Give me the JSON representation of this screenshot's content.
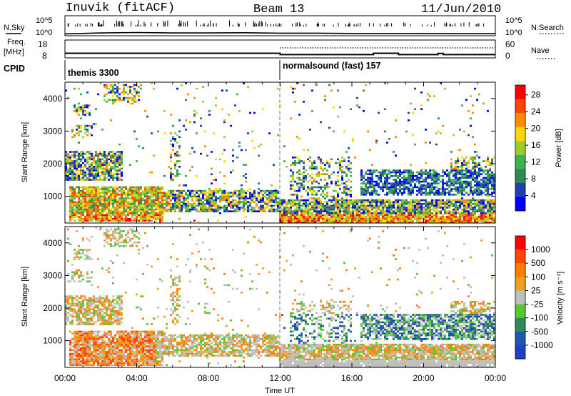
{
  "header": {
    "station": "Inuvik (fitACF)",
    "beam": "Beam 13",
    "date": "11/Jun/2010"
  },
  "top_panels": {
    "nsky_label": "N.Sky",
    "nsky_ticks": [
      "10^5",
      "10^0"
    ],
    "nsearch_label": "N.Search",
    "freq_label_1": "Freq.",
    "freq_label_2": "[MHz]",
    "freq_ticks": [
      "18",
      "8"
    ],
    "nave_ticks": [
      "60",
      "0"
    ],
    "nave_label": "Nave",
    "cpid_label": "CPID",
    "cpid_1": "themis 3300",
    "cpid_2": "normalsound (fast) 157"
  },
  "colors": {
    "power_scale": [
      "#0000ff",
      "#2040b0",
      "#2e8b57",
      "#3cb44b",
      "#9acd32",
      "#ffd700",
      "#ff8c00",
      "#ff4500",
      "#ff0000"
    ],
    "velocity_scale": [
      "#2040c0",
      "#1e5aa8",
      "#2e8b57",
      "#55c832",
      "#bebebe",
      "#f0a020",
      "#ff7f00",
      "#ff4500",
      "#ff0000"
    ]
  },
  "chart_data": [
    {
      "type": "line",
      "panel": "nsky",
      "ylabel": "N.Sky",
      "yticks": [
        "10^5",
        "10^0"
      ],
      "x": [
        0,
        2,
        4,
        6,
        8,
        10,
        12,
        14,
        16,
        18,
        20,
        22,
        24
      ],
      "y_log10": [
        0.5,
        0.9,
        1.1,
        0.9,
        0.9,
        1.0,
        0.8,
        0.8,
        0.7,
        0.7,
        0.7,
        0.6,
        0.6
      ]
    },
    {
      "type": "line",
      "panel": "frequency",
      "ylabel": "Freq. [MHz]",
      "yticks": [
        "18",
        "8"
      ],
      "right_ticks": [
        "60",
        "0"
      ],
      "right_label": "Nave",
      "x": [
        0,
        12,
        12,
        17.2,
        17.2,
        18.6,
        18.6,
        20.8,
        20.8,
        21.1,
        21.1,
        24
      ],
      "freq_mhz": [
        11.1,
        11.1,
        9.8,
        9.8,
        11.1,
        11.1,
        9.8,
        9.8,
        11.0,
        11.0,
        9.8,
        9.8
      ]
    },
    {
      "type": "heatmap",
      "panel": "power",
      "ylabel": "Slant Range [km]",
      "colorbar_label": "Power [dB]",
      "colorbar_ticks": [
        "4",
        "8",
        "12",
        "16",
        "20",
        "24",
        "28"
      ],
      "colorbar_range": [
        0,
        30
      ],
      "xlim": [
        0,
        24
      ],
      "ylim": [
        180,
        4500
      ],
      "yticks": [
        "1000",
        "2000",
        "3000",
        "4000"
      ],
      "cpid_change_hour": 12
    },
    {
      "type": "heatmap",
      "panel": "velocity",
      "ylabel": "Slant Range [km]",
      "xlabel": "Time UT",
      "colorbar_label": "Velocity [m s⁻¹]",
      "colorbar_ticks": [
        "1000",
        "500",
        "100",
        "25",
        "-25",
        "-100",
        "-500",
        "-1000"
      ],
      "colorbar_range": [
        -1000,
        1000
      ],
      "xlim": [
        0,
        24
      ],
      "ylim": [
        180,
        4500
      ],
      "xticks": [
        "00:00",
        "04:00",
        "08:00",
        "12:00",
        "16:00",
        "20:00",
        "00:00"
      ],
      "yticks": [
        "1000",
        "2000",
        "3000",
        "4000"
      ]
    }
  ]
}
